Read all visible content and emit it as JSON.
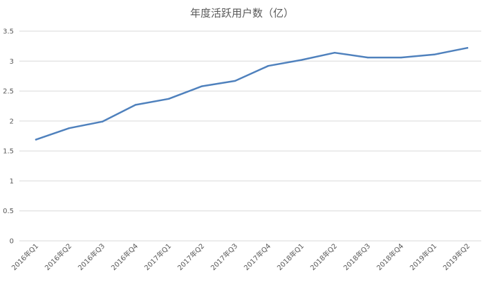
{
  "chart_data": {
    "type": "line",
    "title": "年度活跃用户数（亿）",
    "xlabel": "",
    "ylabel": "",
    "categories": [
      "2016年Q1",
      "2016年Q2",
      "2016年Q3",
      "2016年Q4",
      "2017年Q1",
      "2017年Q2",
      "2017年Q3",
      "2017年Q4",
      "2018年Q1",
      "2018年Q2",
      "2018年Q3",
      "2018年Q4",
      "2019年Q1",
      "2019年Q2"
    ],
    "series": [
      {
        "values": [
          1.69,
          1.88,
          1.99,
          2.27,
          2.37,
          2.58,
          2.67,
          2.92,
          3.02,
          3.14,
          3.06,
          3.06,
          3.11,
          3.22
        ],
        "color": "#4f81bd"
      }
    ],
    "ylim": [
      0,
      3.5
    ],
    "yticks": [
      "0",
      "0.5",
      "1",
      "1.5",
      "2",
      "2.5",
      "3",
      "3.5"
    ],
    "grid": true,
    "legend": "none"
  }
}
